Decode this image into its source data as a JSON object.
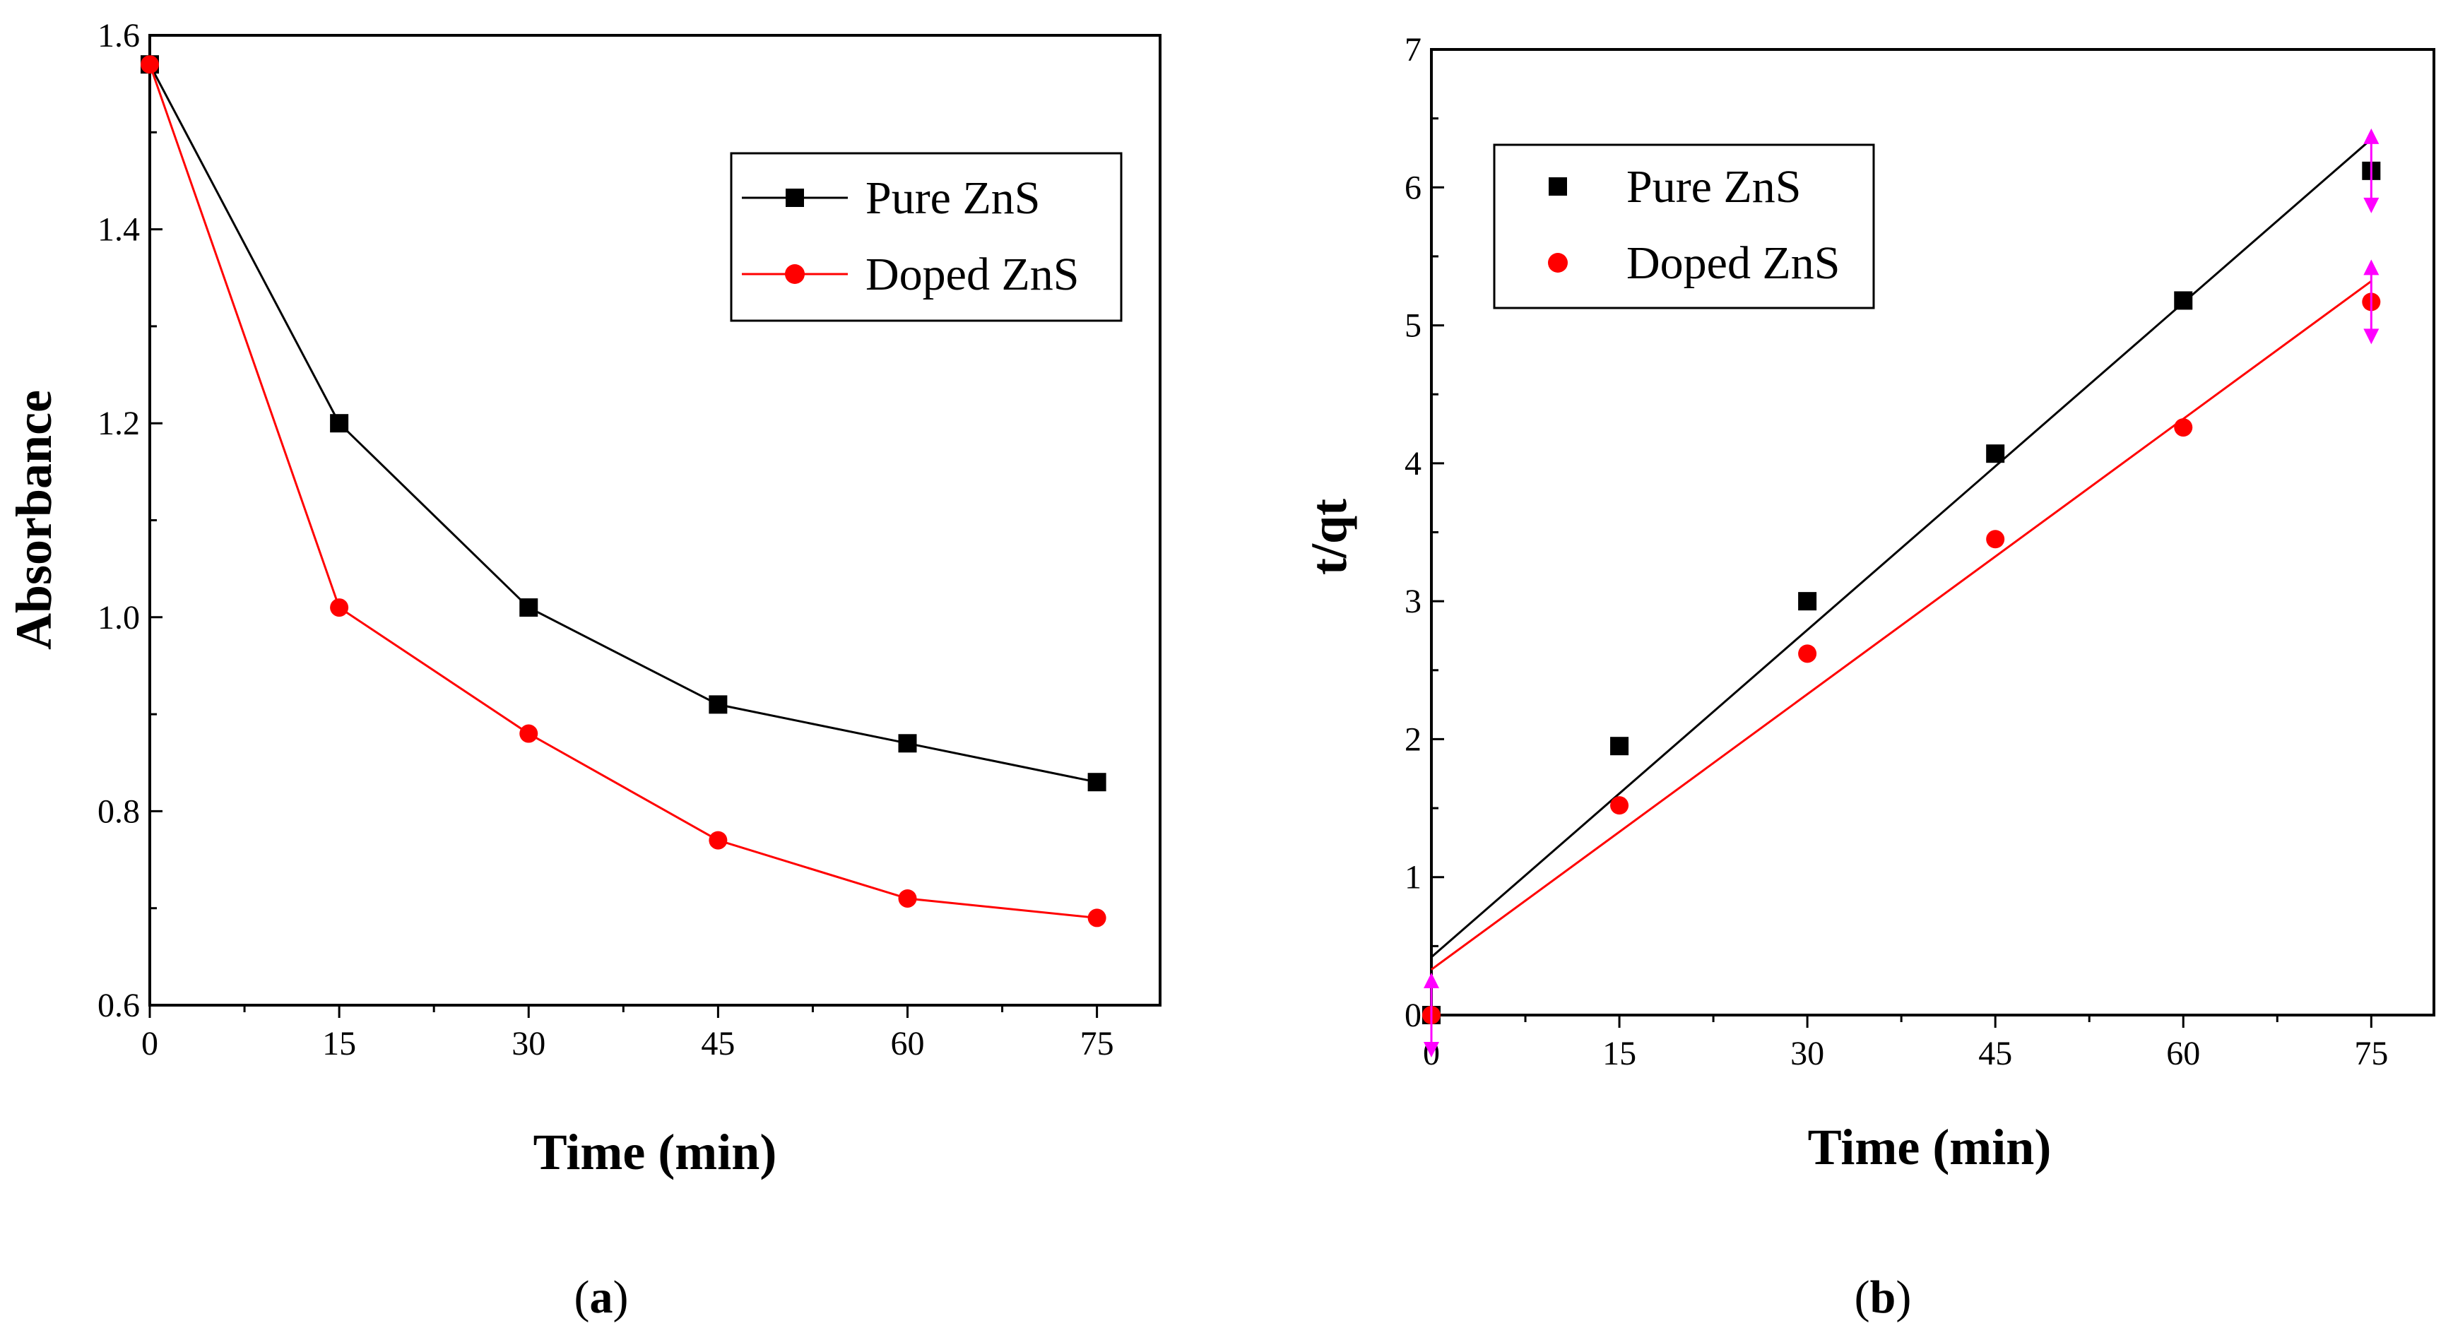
{
  "chart_data": [
    {
      "type": "line",
      "x": [
        0,
        15,
        30,
        45,
        60,
        75
      ],
      "xlabel": "Time (min)",
      "ylabel": "Absorbance",
      "xlim": [
        0,
        80
      ],
      "ylim": [
        0.6,
        1.6
      ],
      "xticks": [
        "0",
        "15",
        "30",
        "45",
        "60",
        "75"
      ],
      "yticks": [
        "0.6",
        "0.8",
        "1.0",
        "1.2",
        "1.4",
        "1.6"
      ],
      "series": [
        {
          "name": "Pure ZnS",
          "values": [
            1.57,
            1.2,
            1.01,
            0.91,
            0.87,
            0.83
          ],
          "color": "#000000",
          "marker": "square"
        },
        {
          "name": "Doped ZnS",
          "values": [
            1.57,
            1.01,
            0.88,
            0.77,
            0.71,
            0.69
          ],
          "color": "#ff0000",
          "marker": "circle"
        }
      ],
      "legend": "top-right",
      "caption": {
        "open": "(",
        "letter": "a",
        "close": ")"
      }
    },
    {
      "type": "scatter",
      "x": [
        0,
        15,
        30,
        45,
        60,
        75
      ],
      "xlabel": "Time (min)",
      "ylabel": "t/qt",
      "xlim": [
        0,
        80
      ],
      "ylim": [
        0,
        7
      ],
      "xticks": [
        "0",
        "15",
        "30",
        "45",
        "60",
        "75"
      ],
      "yticks": [
        "0",
        "1",
        "2",
        "3",
        "4",
        "5",
        "6",
        "7"
      ],
      "series": [
        {
          "name": "Pure ZnS",
          "values": [
            0,
            1.95,
            3.0,
            4.07,
            5.18,
            6.12
          ],
          "color": "#000000",
          "marker": "square",
          "fit": {
            "intercept": 0.42,
            "end": 6.35
          }
        },
        {
          "name": "Doped ZnS",
          "values": [
            0,
            1.52,
            2.62,
            3.45,
            4.26,
            5.17
          ],
          "color": "#ff0000",
          "marker": "circle",
          "fit": {
            "intercept": 0.33,
            "end": 5.32
          }
        }
      ],
      "error_bar_color": "#ff00ff",
      "legend": "top-left",
      "caption": {
        "open": "(",
        "letter": "b",
        "close": ")"
      }
    }
  ]
}
